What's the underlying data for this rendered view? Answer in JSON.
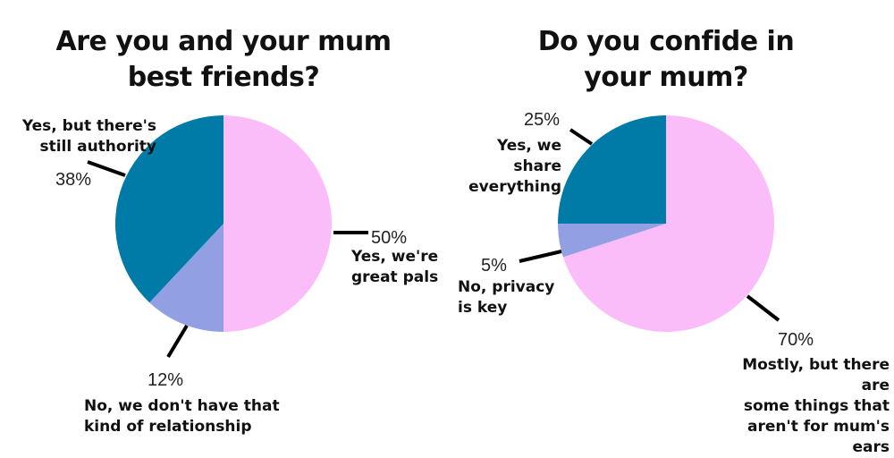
{
  "chart_data": [
    {
      "type": "pie",
      "title_lines": [
        "Are you and your mum",
        "best friends?"
      ],
      "slices": [
        {
          "label_lines": [
            "Yes, we're",
            "great pals"
          ],
          "percent_label": "50%",
          "value": 50,
          "color": "#fbbcfa"
        },
        {
          "label_lines": [
            "No, we don't have that",
            "kind of relationship"
          ],
          "percent_label": "12%",
          "value": 12,
          "color": "#92a0e3"
        },
        {
          "label_lines": [
            "Yes, but there's",
            "still authority"
          ],
          "percent_label": "38%",
          "value": 38,
          "color": "#007ba7"
        }
      ]
    },
    {
      "type": "pie",
      "title_lines": [
        "Do you confide in",
        "your mum?"
      ],
      "slices": [
        {
          "label_lines": [
            "Mostly, but there are",
            "some things that",
            "aren't for mum's ears"
          ],
          "percent_label": "70%",
          "value": 70,
          "color": "#fbbcfa"
        },
        {
          "label_lines": [
            "No, privacy",
            "is key"
          ],
          "percent_label": "5%",
          "value": 5,
          "color": "#92a0e3"
        },
        {
          "label_lines": [
            "Yes, we share",
            "everything"
          ],
          "percent_label": "25%",
          "value": 25,
          "color": "#007ba7"
        }
      ]
    }
  ]
}
